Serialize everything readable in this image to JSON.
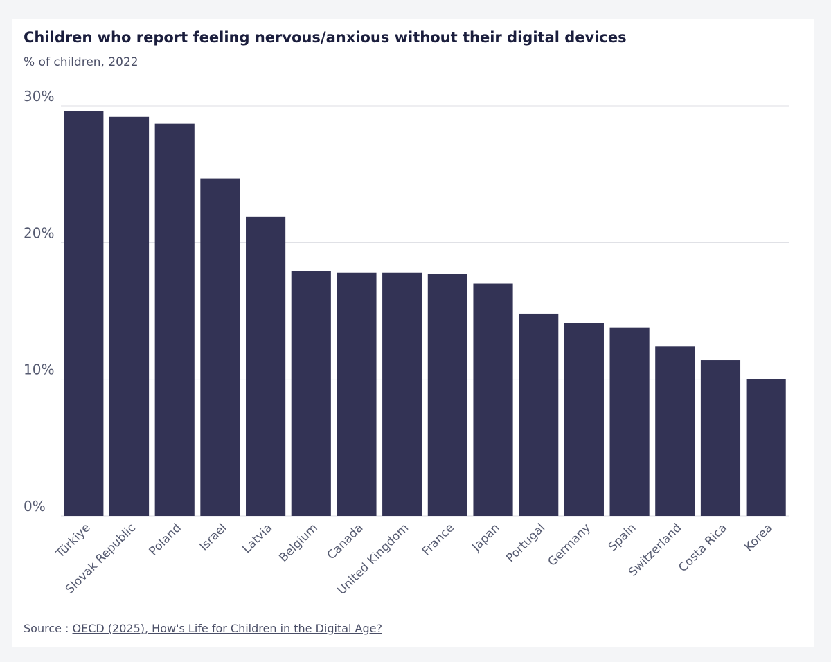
{
  "title": "Children who report feeling nervous/anxious without their digital devices",
  "subtitle": "% of children, 2022",
  "source": {
    "prefix": "Source : ",
    "link_text": "OECD (2025), How's Life for Children in the Digital Age?"
  },
  "colors": {
    "bar": "#333355",
    "grid": "#dcdde3",
    "tick_text": "#555a70"
  },
  "chart_data": {
    "type": "bar",
    "title": "Children who report feeling nervous/anxious without their digital devices",
    "subtitle": "% of children, 2022",
    "xlabel": "",
    "ylabel": "",
    "ylim": [
      0,
      30
    ],
    "yticks": [
      0,
      10,
      20,
      30
    ],
    "ytick_labels": [
      "0%",
      "10%",
      "20%",
      "30%"
    ],
    "grid": true,
    "legend": "none",
    "categories": [
      "Türkiye",
      "Slovak Republic",
      "Poland",
      "Israel",
      "Latvia",
      "Belgium",
      "Canada",
      "United Kingdom",
      "France",
      "Japan",
      "Portugal",
      "Germany",
      "Spain",
      "Switzerland",
      "Costa Rica",
      "Korea"
    ],
    "values": [
      29.6,
      29.2,
      28.7,
      24.7,
      21.9,
      17.9,
      17.8,
      17.8,
      17.7,
      17.0,
      14.8,
      14.1,
      13.8,
      12.4,
      11.4,
      10.0
    ]
  }
}
